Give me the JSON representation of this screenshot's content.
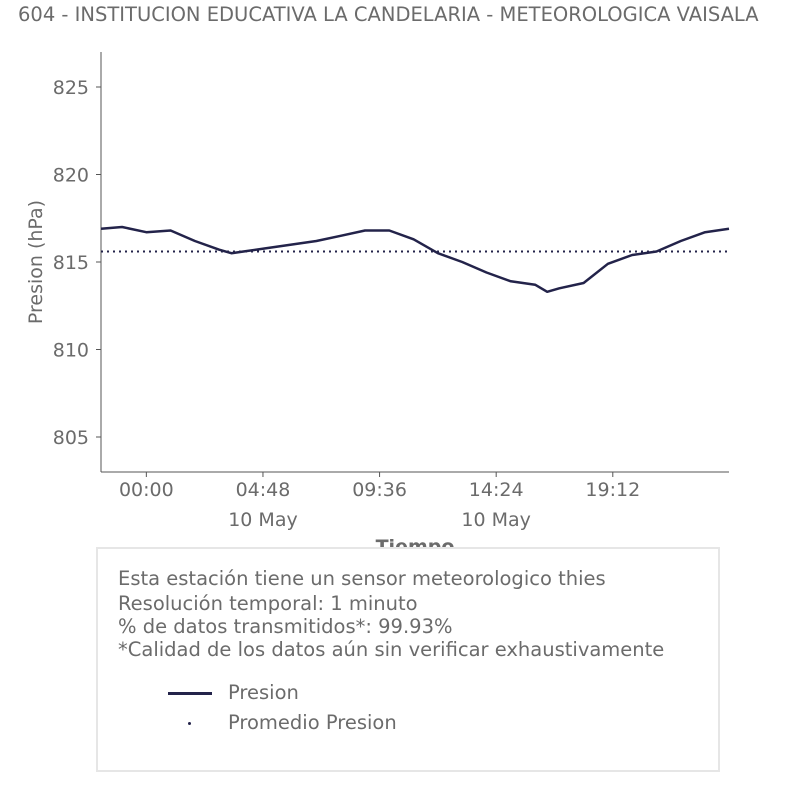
{
  "title": "604 - INSTITUCION EDUCATIVA LA CANDELARIA - METEOROLOGICA VAISALA",
  "colors": {
    "series": "#23234a",
    "text": "#6b6b6b",
    "axis": "#555555",
    "box_border": "#e6e6e6"
  },
  "info": {
    "line1": "Esta estación tiene un sensor meteorologico thies",
    "line2": "Resolución temporal: 1 minuto",
    "line3": "% de datos transmitidos*: 99.93%",
    "line4": "*Calidad de los datos aún sin verificar exhaustivamente"
  },
  "chart_data": {
    "type": "line",
    "title": "604 - INSTITUCION EDUCATIVA LA CANDELARIA - METEOROLOGICA VAISALA",
    "xlabel": "Tiempo",
    "ylabel": "Presion (hPa)",
    "ylim": [
      803,
      827
    ],
    "yticks": [
      805,
      810,
      815,
      820,
      825
    ],
    "xlim": [
      "2020-05-09 22:08",
      "2020-05-10 23:59"
    ],
    "xticks": [
      {
        "value": "2020-05-10 00:00",
        "label": "00:00",
        "sublabel": ""
      },
      {
        "value": "2020-05-10 04:48",
        "label": "04:48",
        "sublabel": "10 May"
      },
      {
        "value": "2020-05-10 09:36",
        "label": "09:36",
        "sublabel": ""
      },
      {
        "value": "2020-05-10 14:24",
        "label": "14:24",
        "sublabel": "10 May"
      },
      {
        "value": "2020-05-10 19:12",
        "label": "19:12",
        "sublabel": ""
      }
    ],
    "grid": false,
    "legend": "bottom",
    "series": [
      {
        "name": "Presion",
        "style": "line",
        "x": [
          "2020-05-09 22:08",
          "2020-05-09 23:00",
          "2020-05-10 00:00",
          "2020-05-10 01:00",
          "2020-05-10 02:00",
          "2020-05-10 03:00",
          "2020-05-10 03:30",
          "2020-05-10 04:00",
          "2020-05-10 05:00",
          "2020-05-10 06:00",
          "2020-05-10 07:00",
          "2020-05-10 08:00",
          "2020-05-10 09:00",
          "2020-05-10 10:00",
          "2020-05-10 11:00",
          "2020-05-10 12:00",
          "2020-05-10 13:00",
          "2020-05-10 14:00",
          "2020-05-10 15:00",
          "2020-05-10 16:00",
          "2020-05-10 16:30",
          "2020-05-10 17:00",
          "2020-05-10 18:00",
          "2020-05-10 19:00",
          "2020-05-10 20:00",
          "2020-05-10 21:00",
          "2020-05-10 22:00",
          "2020-05-10 23:00",
          "2020-05-10 23:59"
        ],
        "y": [
          816.9,
          817.0,
          816.7,
          816.8,
          816.2,
          815.7,
          815.5,
          815.6,
          815.8,
          816.0,
          816.2,
          816.5,
          816.8,
          816.8,
          816.3,
          815.5,
          815.0,
          814.4,
          813.9,
          813.7,
          813.3,
          813.5,
          813.8,
          814.9,
          815.4,
          815.6,
          816.2,
          816.7,
          816.9
        ]
      },
      {
        "name": "Promedio Presion",
        "style": "dotted",
        "x": [
          "2020-05-09 22:08",
          "2020-05-10 23:59"
        ],
        "y": [
          815.6,
          815.6
        ]
      }
    ]
  }
}
